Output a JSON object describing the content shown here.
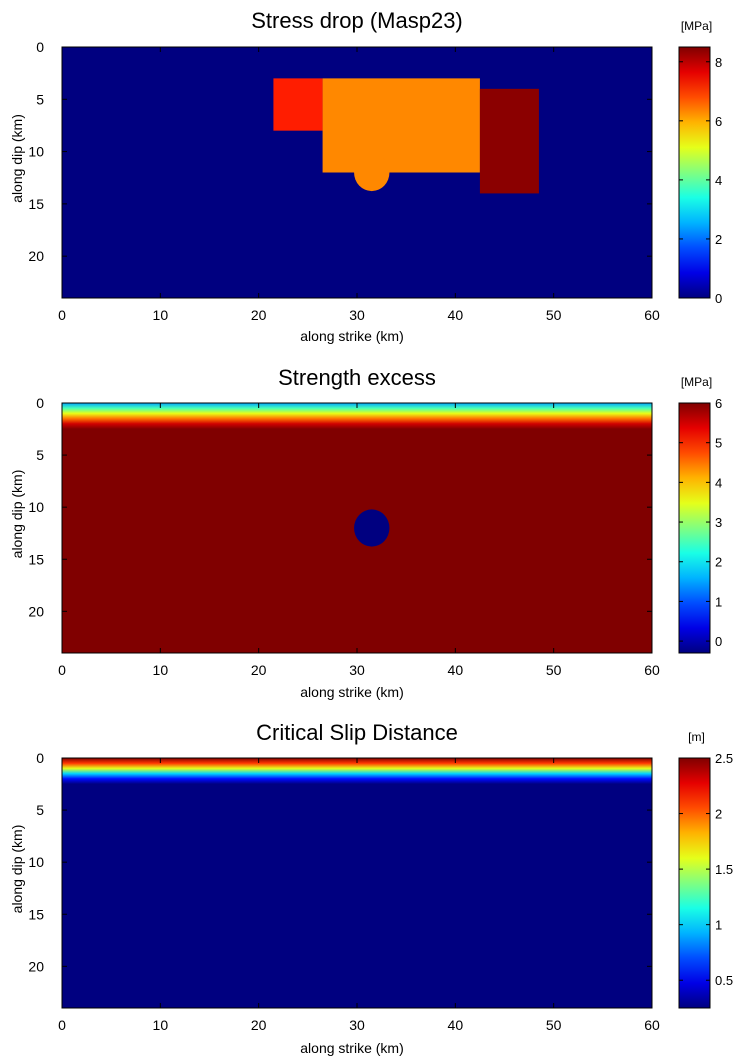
{
  "chart_data": [
    {
      "type": "heatmap",
      "title": "Stress drop (Masp23)",
      "xlabel": "along strike (km)",
      "ylabel": "along dip (km)",
      "xlim": [
        0,
        60
      ],
      "ylim": [
        24,
        0
      ],
      "x_ticks": [
        0,
        10,
        20,
        30,
        40,
        50,
        60
      ],
      "y_ticks": [
        0,
        5,
        10,
        15,
        20
      ],
      "colorbar": {
        "unit": "[MPa]",
        "range": [
          0,
          8.5
        ],
        "ticks": [
          0,
          2,
          4,
          6,
          8
        ]
      },
      "background_value": 0,
      "regions": [
        {
          "shape": "rect",
          "x": [
            21.5,
            26.5
          ],
          "y": [
            3,
            8
          ],
          "value": 7.2
        },
        {
          "shape": "rect",
          "x": [
            26.5,
            42.5
          ],
          "y": [
            3,
            12
          ],
          "value": 6.3
        },
        {
          "shape": "circle",
          "cx": 31.5,
          "cy": 12,
          "r": 1.8,
          "value": 6.3
        },
        {
          "shape": "rect",
          "x": [
            42.5,
            48.5
          ],
          "y": [
            4,
            14
          ],
          "value": 8.4
        }
      ]
    },
    {
      "type": "heatmap",
      "title": "Strength excess",
      "xlabel": "along strike (km)",
      "ylabel": "along dip (km)",
      "xlim": [
        0,
        60
      ],
      "ylim": [
        24,
        0
      ],
      "x_ticks": [
        0,
        10,
        20,
        30,
        40,
        50,
        60
      ],
      "y_ticks": [
        0,
        5,
        10,
        15,
        20
      ],
      "colorbar": {
        "unit": "[MPa]",
        "range": [
          -0.3,
          6
        ],
        "ticks": [
          0,
          1,
          2,
          3,
          4,
          5,
          6
        ]
      },
      "background_value": 6,
      "depth_profile": {
        "depth": [
          0,
          0.5,
          1,
          1.5,
          2,
          2.5
        ],
        "value": [
          1.5,
          2.5,
          3.5,
          4.5,
          5.5,
          6
        ]
      },
      "regions": [
        {
          "shape": "circle",
          "cx": 31.5,
          "cy": 12,
          "r": 1.8,
          "value": -0.3
        }
      ]
    },
    {
      "type": "heatmap",
      "title": "Critical Slip Distance",
      "xlabel": "along strike (km)",
      "ylabel": "along dip (km)",
      "xlim": [
        0,
        60
      ],
      "ylim": [
        24,
        0
      ],
      "x_ticks": [
        0,
        10,
        20,
        30,
        40,
        50,
        60
      ],
      "y_ticks": [
        0,
        5,
        10,
        15,
        20
      ],
      "colorbar": {
        "unit": "[m]",
        "range": [
          0.25,
          2.5
        ],
        "ticks": [
          0.5,
          1,
          1.5,
          2,
          2.5
        ]
      },
      "background_value": 0.25,
      "depth_profile": {
        "depth": [
          0,
          0.5,
          1,
          1.5,
          2,
          2.5
        ],
        "value": [
          2.5,
          2.1,
          1.6,
          1.0,
          0.55,
          0.25
        ]
      },
      "regions": []
    }
  ]
}
